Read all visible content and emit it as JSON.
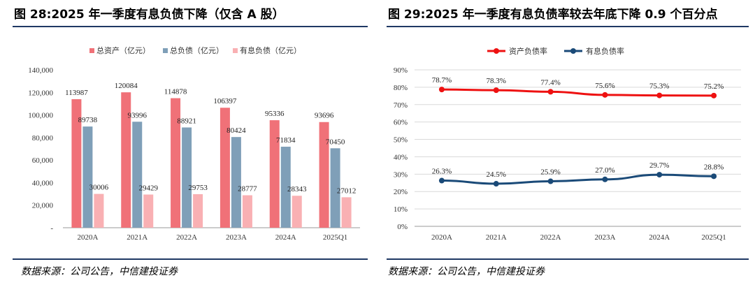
{
  "left": {
    "title": "图 28:2025 年一季度有息负债下降（仅含 A 股）",
    "source": "数据来源：公司公告，中信建投证券",
    "chart_data": {
      "type": "bar",
      "categories": [
        "2020A",
        "2021A",
        "2022A",
        "2023A",
        "2024A",
        "2025Q1"
      ],
      "series": [
        {
          "name": "总资产（亿元）",
          "color": "#f07178",
          "values": [
            113987,
            120084,
            114878,
            106397,
            95336,
            93696
          ]
        },
        {
          "name": "总负债（亿元）",
          "color": "#7f9fb8",
          "values": [
            89738,
            93996,
            88921,
            80424,
            71834,
            70450
          ]
        },
        {
          "name": "有息负债（亿元）",
          "color": "#f9b0b3",
          "values": [
            30006,
            29429,
            29753,
            28777,
            28343,
            27012
          ]
        }
      ],
      "ylim": [
        0,
        140000
      ],
      "yticks": [
        0,
        20000,
        40000,
        60000,
        80000,
        100000,
        120000,
        140000
      ],
      "ytick_labels": [
        "-",
        "20,000",
        "40,000",
        "60,000",
        "80,000",
        "100,000",
        "120,000",
        "140,000"
      ],
      "legend_position": "top",
      "grid": false
    }
  },
  "right": {
    "title": "图 29:2025 年一季度有息负债率较去年底下降 0.9 个百分点",
    "source": "数据来源：公司公告，中信建投证券",
    "chart_data": {
      "type": "line",
      "categories": [
        "2020A",
        "2021A",
        "2022A",
        "2023A",
        "2024A",
        "2025Q1"
      ],
      "series": [
        {
          "name": "资产负债率",
          "color": "#ee1111",
          "values": [
            78.7,
            78.3,
            77.4,
            75.6,
            75.3,
            75.2
          ],
          "labels": [
            "78.7%",
            "78.3%",
            "77.4%",
            "75.6%",
            "75.3%",
            "75.2%"
          ]
        },
        {
          "name": "有息负债率",
          "color": "#1a4a78",
          "values": [
            26.3,
            24.5,
            25.9,
            27.0,
            29.7,
            28.8
          ],
          "labels": [
            "26.3%",
            "24.5%",
            "25.9%",
            "27.0%",
            "29.7%",
            "28.8%"
          ]
        }
      ],
      "ylim": [
        0,
        90
      ],
      "yticks": [
        0,
        10,
        20,
        30,
        40,
        50,
        60,
        70,
        80,
        90
      ],
      "ytick_labels": [
        "0%",
        "10%",
        "20%",
        "30%",
        "40%",
        "50%",
        "60%",
        "70%",
        "80%",
        "90%"
      ],
      "legend_position": "top",
      "grid": true
    }
  }
}
